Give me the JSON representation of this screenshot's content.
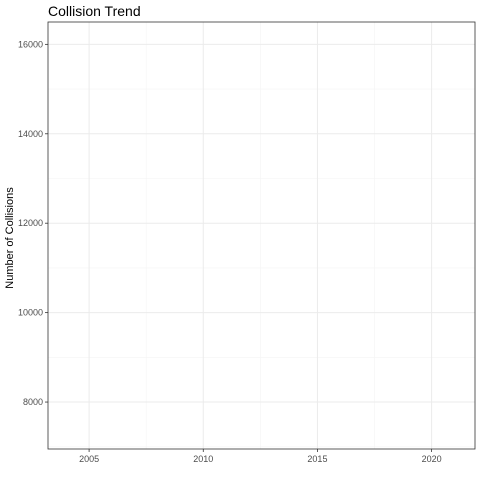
{
  "chart_data": {
    "type": "line",
    "title": "Collision Trend",
    "xlabel": "",
    "ylabel": "Number of Collisions",
    "xlim": [
      2003.2,
      2021.9
    ],
    "ylim": [
      6950,
      16500
    ],
    "x_ticks": [
      2005,
      2010,
      2015,
      2020
    ],
    "x_minor_ticks": [
      2007.5,
      2012.5,
      2017.5
    ],
    "y_ticks": [
      8000,
      10000,
      12000,
      14000,
      16000
    ],
    "y_minor_ticks": [
      7000,
      9000,
      11000,
      13000,
      15000
    ],
    "series": [],
    "grid": true,
    "legend": "none",
    "colors": {
      "grid_major": "#ebebeb",
      "grid_minor": "#f4f4f4",
      "panel_border": "#333333",
      "tick_text": "#4d4d4d"
    }
  }
}
